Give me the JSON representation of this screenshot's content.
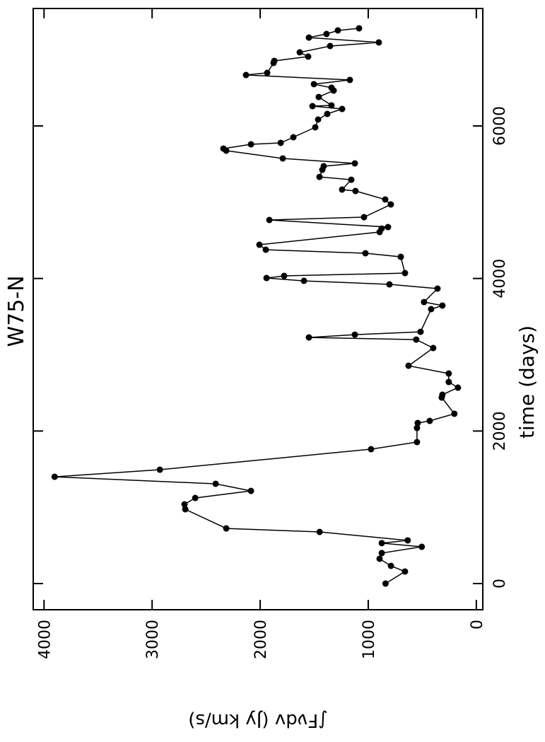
{
  "chart_data": {
    "type": "line",
    "title": "W75-N",
    "x_label": "time (days)",
    "y_label": "∫Fνdv (Jy km/s)",
    "orientation": "rotated",
    "x": [
      0,
      158,
      232,
      325,
      400,
      482,
      530,
      566,
      677,
      723,
      974,
      1039,
      1122,
      1215,
      1308,
      1400,
      1493,
      1762,
      1855,
      2040,
      2105,
      2133,
      2226,
      2439,
      2476,
      2569,
      2643,
      2754,
      2856,
      3088,
      3199,
      3227,
      3264,
      3301,
      3598,
      3645,
      3691,
      3867,
      3923,
      3969,
      4006,
      4034,
      4071,
      4284,
      4331,
      4377,
      4442,
      4609,
      4655,
      4674,
      4767,
      4804,
      4971,
      5036,
      5147,
      5166,
      5295,
      5332,
      5425,
      5472,
      5509,
      5574,
      5676,
      5703,
      5759,
      5778,
      5852,
      5982,
      6084,
      6158,
      6223,
      6260,
      6269,
      6380,
      6464,
      6501,
      6548,
      6603,
      6668,
      6696,
      6826,
      6853,
      6909,
      6965,
      7048,
      7095,
      7159,
      7206,
      7252,
      7280
    ],
    "series": [
      {
        "name": "W75-N",
        "color": "#000000",
        "values": [
          840,
          660,
          790,
          895,
          875,
          505,
          875,
          635,
          1450,
          2314,
          2693,
          2700,
          2601,
          2085,
          2412,
          3902,
          2928,
          974,
          549,
          549,
          542,
          431,
          203,
          320,
          314,
          170,
          255,
          255,
          627,
          399,
          556,
          1549,
          1124,
          516,
          418,
          314,
          484,
          359,
          804,
          1595,
          1941,
          1778,
          660,
          699,
          1026,
          1948,
          2007,
          895,
          876,
          817,
          1915,
          1039,
          791,
          843,
          1118,
          1242,
          1157,
          1451,
          1425,
          1412,
          1124,
          1791,
          2314,
          2340,
          2085,
          1810,
          1693,
          1490,
          1464,
          1379,
          1242,
          1516,
          1340,
          1458,
          1320,
          1340,
          1503,
          1170,
          2131,
          1935,
          1876,
          1869,
          1556,
          1634,
          1353,
          902,
          1549,
          1386,
          1281,
          1085
        ]
      }
    ],
    "xlim": [
      -343,
      7540
    ],
    "xticks": [
      0,
      2000,
      4000,
      6000
    ],
    "ylim": [
      -60,
      4100
    ],
    "yticks": [
      0,
      1000,
      2000,
      3000,
      4000
    ]
  }
}
